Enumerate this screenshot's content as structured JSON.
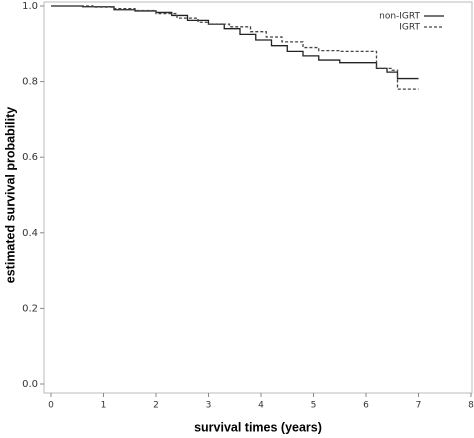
{
  "chart_data": {
    "type": "line",
    "step": "post",
    "xlabel": "survival times (years)",
    "ylabel": "estimated survival probability",
    "xlim": [
      0,
      8
    ],
    "xticks": [
      0,
      1,
      2,
      3,
      4,
      5,
      6,
      7,
      8
    ],
    "ylim": [
      0,
      1
    ],
    "yticks": [
      {
        "value": 0,
        "label": "0.0"
      },
      {
        "value": 0.2,
        "label": "0.2"
      },
      {
        "value": 0.4,
        "label": "0.4"
      },
      {
        "value": 0.6,
        "label": "0.6"
      },
      {
        "value": 0.8,
        "label": "0.8"
      },
      {
        "value": 1,
        "label": "1.0"
      }
    ],
    "legend": "upper right",
    "series": [
      {
        "name": "non-IGRT",
        "color": "#222222",
        "dash": "solid",
        "x": [
          0,
          0.6,
          1.2,
          1.6,
          2.0,
          2.3,
          2.6,
          3.0,
          3.3,
          3.6,
          3.9,
          4.2,
          4.5,
          4.8,
          5.1,
          5.5,
          6.0,
          6.2,
          6.4,
          6.6,
          7.0
        ],
        "values": [
          1.0,
          0.998,
          0.99,
          0.987,
          0.983,
          0.975,
          0.962,
          0.952,
          0.94,
          0.925,
          0.91,
          0.895,
          0.88,
          0.868,
          0.857,
          0.85,
          0.85,
          0.835,
          0.825,
          0.808,
          0.808
        ]
      },
      {
        "name": "IGRT",
        "color": "#444444",
        "dash": "dashed",
        "x": [
          0,
          0.8,
          1.2,
          1.6,
          2.0,
          2.4,
          2.8,
          3.0,
          3.4,
          3.8,
          4.1,
          4.4,
          4.8,
          5.1,
          5.5,
          6.1,
          6.2,
          6.5,
          6.6,
          7.0
        ],
        "values": [
          1.0,
          0.997,
          0.993,
          0.988,
          0.98,
          0.968,
          0.957,
          0.952,
          0.945,
          0.932,
          0.918,
          0.905,
          0.89,
          0.882,
          0.88,
          0.88,
          0.835,
          0.83,
          0.78,
          0.78
        ]
      }
    ]
  }
}
